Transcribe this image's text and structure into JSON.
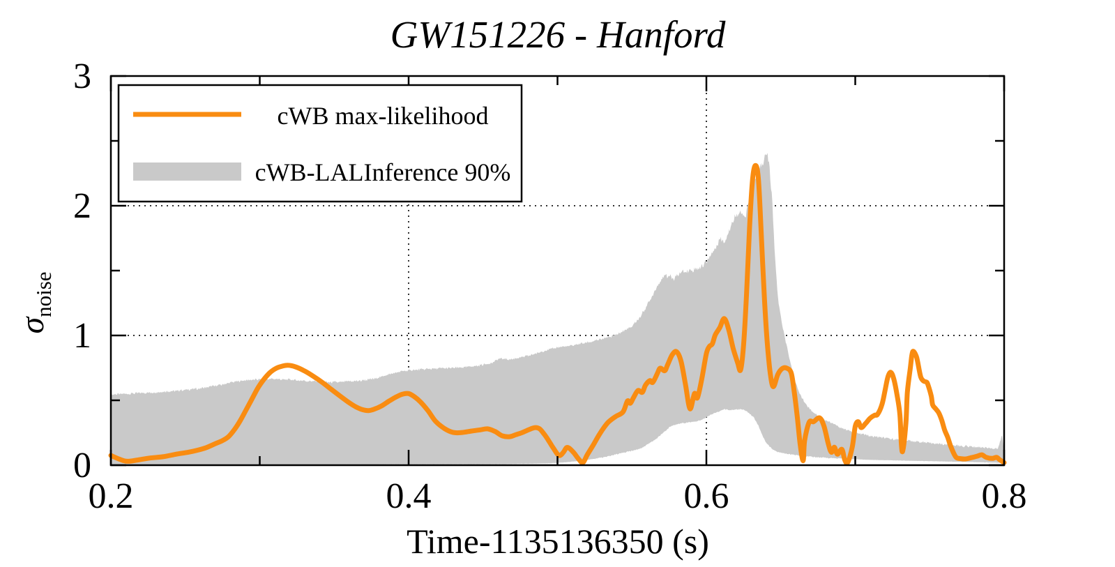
{
  "title": "GW151226 - Hanford",
  "axes": {
    "xlabel": "Time-1135136350 (s)",
    "ylabel_symbol": "σ",
    "ylabel_subscript": "noise",
    "x_tick_labels": [
      "0.2",
      "0.4",
      "0.6",
      "0.8"
    ],
    "y_tick_labels": [
      "0",
      "1",
      "2",
      "3"
    ]
  },
  "legend": {
    "entries": [
      {
        "label": "cWB max-likelihood",
        "swatch": "line"
      },
      {
        "label": "cWB-LALInference 90%",
        "swatch": "band"
      }
    ]
  },
  "colors": {
    "line": "#f98c11",
    "band": "#c9c9c9",
    "grid": "#1a1a1a",
    "axis": "#000000",
    "background": "#ffffff"
  },
  "chart_data": {
    "type": "line",
    "title": "GW151226 - Hanford",
    "xlabel": "Time-1135136350 (s)",
    "ylabel": "sigma_noise",
    "xlim": [
      0.2,
      0.8
    ],
    "ylim": [
      0,
      3
    ],
    "xticks": [
      0.2,
      0.4,
      0.6,
      0.8
    ],
    "xticks_minor": [
      0.3,
      0.5,
      0.7
    ],
    "yticks": [
      0,
      1,
      2,
      3
    ],
    "yticks_minor": [
      0.5,
      1.5,
      2.5
    ],
    "grid": {
      "x": [
        0.4,
        0.6
      ],
      "y": [
        1,
        2
      ],
      "style": "dotted"
    },
    "legend_position": "top-left",
    "series": [
      {
        "name": "cWB max-likelihood",
        "type": "line",
        "color": "#f98c11",
        "points": [
          [
            0.2,
            0.075
          ],
          [
            0.206,
            0.045
          ],
          [
            0.211,
            0.03
          ],
          [
            0.218,
            0.04
          ],
          [
            0.226,
            0.055
          ],
          [
            0.235,
            0.065
          ],
          [
            0.244,
            0.085
          ],
          [
            0.252,
            0.1
          ],
          [
            0.258,
            0.115
          ],
          [
            0.264,
            0.135
          ],
          [
            0.27,
            0.165
          ],
          [
            0.275,
            0.19
          ],
          [
            0.279,
            0.22
          ],
          [
            0.283,
            0.275
          ],
          [
            0.287,
            0.345
          ],
          [
            0.291,
            0.43
          ],
          [
            0.295,
            0.515
          ],
          [
            0.299,
            0.6
          ],
          [
            0.303,
            0.665
          ],
          [
            0.307,
            0.715
          ],
          [
            0.311,
            0.747
          ],
          [
            0.315,
            0.763
          ],
          [
            0.319,
            0.77
          ],
          [
            0.324,
            0.758
          ],
          [
            0.33,
            0.727
          ],
          [
            0.336,
            0.685
          ],
          [
            0.342,
            0.638
          ],
          [
            0.348,
            0.585
          ],
          [
            0.354,
            0.533
          ],
          [
            0.36,
            0.482
          ],
          [
            0.365,
            0.447
          ],
          [
            0.369,
            0.428
          ],
          [
            0.373,
            0.421
          ],
          [
            0.377,
            0.432
          ],
          [
            0.382,
            0.458
          ],
          [
            0.387,
            0.495
          ],
          [
            0.392,
            0.528
          ],
          [
            0.396,
            0.548
          ],
          [
            0.4,
            0.552
          ],
          [
            0.404,
            0.527
          ],
          [
            0.408,
            0.487
          ],
          [
            0.413,
            0.42
          ],
          [
            0.418,
            0.34
          ],
          [
            0.424,
            0.283
          ],
          [
            0.43,
            0.252
          ],
          [
            0.436,
            0.252
          ],
          [
            0.442,
            0.263
          ],
          [
            0.448,
            0.272
          ],
          [
            0.453,
            0.28
          ],
          [
            0.458,
            0.26
          ],
          [
            0.463,
            0.226
          ],
          [
            0.468,
            0.22
          ],
          [
            0.472,
            0.235
          ],
          [
            0.476,
            0.25
          ],
          [
            0.481,
            0.275
          ],
          [
            0.485,
            0.29
          ],
          [
            0.488,
            0.28
          ],
          [
            0.491,
            0.24
          ],
          [
            0.494,
            0.19
          ],
          [
            0.497,
            0.135
          ],
          [
            0.501,
            0.075
          ],
          [
            0.504,
            0.1
          ],
          [
            0.506,
            0.135
          ],
          [
            0.508,
            0.13
          ],
          [
            0.511,
            0.095
          ],
          [
            0.514,
            0.05
          ],
          [
            0.517,
            0.02
          ],
          [
            0.52,
            0.08
          ],
          [
            0.524,
            0.155
          ],
          [
            0.527,
            0.215
          ],
          [
            0.53,
            0.27
          ],
          [
            0.534,
            0.33
          ],
          [
            0.539,
            0.375
          ],
          [
            0.544,
            0.41
          ],
          [
            0.547,
            0.495
          ],
          [
            0.549,
            0.478
          ],
          [
            0.551,
            0.52
          ],
          [
            0.554,
            0.575
          ],
          [
            0.557,
            0.562
          ],
          [
            0.559,
            0.615
          ],
          [
            0.562,
            0.652
          ],
          [
            0.564,
            0.638
          ],
          [
            0.567,
            0.705
          ],
          [
            0.569,
            0.748
          ],
          [
            0.572,
            0.728
          ],
          [
            0.574,
            0.775
          ],
          [
            0.577,
            0.85
          ],
          [
            0.58,
            0.875
          ],
          [
            0.583,
            0.8
          ],
          [
            0.586,
            0.62
          ],
          [
            0.589,
            0.435
          ],
          [
            0.592,
            0.552
          ],
          [
            0.594,
            0.52
          ],
          [
            0.597,
            0.67
          ],
          [
            0.6,
            0.86
          ],
          [
            0.602,
            0.915
          ],
          [
            0.604,
            0.935
          ],
          [
            0.606,
            1.005
          ],
          [
            0.609,
            1.06
          ],
          [
            0.612,
            1.13
          ],
          [
            0.615,
            1.045
          ],
          [
            0.618,
            0.9
          ],
          [
            0.621,
            0.79
          ],
          [
            0.623,
            0.735
          ],
          [
            0.625,
            0.93
          ],
          [
            0.627,
            1.32
          ],
          [
            0.629,
            1.83
          ],
          [
            0.631,
            2.2
          ],
          [
            0.633,
            2.31
          ],
          [
            0.635,
            2.2
          ],
          [
            0.637,
            1.75
          ],
          [
            0.639,
            1.28
          ],
          [
            0.641,
            0.93
          ],
          [
            0.643,
            0.7
          ],
          [
            0.645,
            0.605
          ],
          [
            0.648,
            0.7
          ],
          [
            0.651,
            0.745
          ],
          [
            0.654,
            0.748
          ],
          [
            0.657,
            0.71
          ],
          [
            0.659,
            0.565
          ],
          [
            0.661,
            0.38
          ],
          [
            0.663,
            0.16
          ],
          [
            0.665,
            0.035
          ],
          [
            0.666,
            0.19
          ],
          [
            0.669,
            0.33
          ],
          [
            0.672,
            0.335
          ],
          [
            0.676,
            0.365
          ],
          [
            0.679,
            0.3
          ],
          [
            0.682,
            0.16
          ],
          [
            0.684,
            0.1
          ],
          [
            0.686,
            0.138
          ],
          [
            0.688,
            0.085
          ],
          [
            0.691,
            0.122
          ],
          [
            0.693,
            0.038
          ],
          [
            0.695,
            0.022
          ],
          [
            0.698,
            0.14
          ],
          [
            0.7,
            0.3
          ],
          [
            0.702,
            0.335
          ],
          [
            0.704,
            0.29
          ],
          [
            0.707,
            0.322
          ],
          [
            0.71,
            0.362
          ],
          [
            0.713,
            0.385
          ],
          [
            0.715,
            0.392
          ],
          [
            0.718,
            0.47
          ],
          [
            0.72,
            0.575
          ],
          [
            0.722,
            0.683
          ],
          [
            0.724,
            0.715
          ],
          [
            0.726,
            0.66
          ],
          [
            0.728,
            0.545
          ],
          [
            0.73,
            0.39
          ],
          [
            0.731,
            0.155
          ],
          [
            0.732,
            0.115
          ],
          [
            0.734,
            0.32
          ],
          [
            0.735,
            0.56
          ],
          [
            0.737,
            0.75
          ],
          [
            0.738,
            0.845
          ],
          [
            0.739,
            0.878
          ],
          [
            0.741,
            0.84
          ],
          [
            0.742,
            0.792
          ],
          [
            0.744,
            0.68
          ],
          [
            0.746,
            0.648
          ],
          [
            0.748,
            0.64
          ],
          [
            0.749,
            0.615
          ],
          [
            0.751,
            0.535
          ],
          [
            0.752,
            0.465
          ],
          [
            0.754,
            0.435
          ],
          [
            0.756,
            0.405
          ],
          [
            0.758,
            0.35
          ],
          [
            0.76,
            0.272
          ],
          [
            0.762,
            0.218
          ],
          [
            0.764,
            0.15
          ],
          [
            0.766,
            0.095
          ],
          [
            0.768,
            0.058
          ],
          [
            0.771,
            0.05
          ],
          [
            0.774,
            0.048
          ],
          [
            0.778,
            0.058
          ],
          [
            0.782,
            0.07
          ],
          [
            0.785,
            0.08
          ],
          [
            0.788,
            0.06
          ],
          [
            0.792,
            0.052
          ],
          [
            0.795,
            0.06
          ],
          [
            0.797,
            0.042
          ],
          [
            0.8,
            0.02
          ]
        ]
      },
      {
        "name": "cWB-LALInference 90%",
        "type": "band",
        "color": "#c9c9c9",
        "points_format": "[t, lower, upper]",
        "points": [
          [
            0.2,
            0.003,
            0.545
          ],
          [
            0.212,
            0.003,
            0.552
          ],
          [
            0.224,
            0.003,
            0.558
          ],
          [
            0.236,
            0.003,
            0.566
          ],
          [
            0.248,
            0.003,
            0.578
          ],
          [
            0.26,
            0.003,
            0.592
          ],
          [
            0.272,
            0.003,
            0.615
          ],
          [
            0.284,
            0.004,
            0.645
          ],
          [
            0.296,
            0.004,
            0.66
          ],
          [
            0.308,
            0.004,
            0.665
          ],
          [
            0.32,
            0.004,
            0.66
          ],
          [
            0.332,
            0.004,
            0.648
          ],
          [
            0.344,
            0.004,
            0.64
          ],
          [
            0.356,
            0.005,
            0.642
          ],
          [
            0.368,
            0.005,
            0.652
          ],
          [
            0.378,
            0.005,
            0.668
          ],
          [
            0.388,
            0.006,
            0.705
          ],
          [
            0.398,
            0.006,
            0.728
          ],
          [
            0.41,
            0.007,
            0.74
          ],
          [
            0.422,
            0.007,
            0.746
          ],
          [
            0.434,
            0.008,
            0.752
          ],
          [
            0.446,
            0.008,
            0.765
          ],
          [
            0.456,
            0.009,
            0.79
          ],
          [
            0.461,
            0.009,
            0.822
          ],
          [
            0.468,
            0.01,
            0.815
          ],
          [
            0.476,
            0.011,
            0.83
          ],
          [
            0.484,
            0.012,
            0.855
          ],
          [
            0.492,
            0.014,
            0.885
          ],
          [
            0.5,
            0.018,
            0.908
          ],
          [
            0.508,
            0.025,
            0.92
          ],
          [
            0.516,
            0.035,
            0.938
          ],
          [
            0.524,
            0.048,
            0.955
          ],
          [
            0.532,
            0.062,
            0.98
          ],
          [
            0.538,
            0.08,
            1.0
          ],
          [
            0.544,
            0.095,
            1.03
          ],
          [
            0.55,
            0.11,
            1.07
          ],
          [
            0.556,
            0.13,
            1.15
          ],
          [
            0.562,
            0.17,
            1.27
          ],
          [
            0.567,
            0.21,
            1.38
          ],
          [
            0.571,
            0.25,
            1.45
          ],
          [
            0.575,
            0.29,
            1.468
          ],
          [
            0.578,
            0.31,
            1.43
          ],
          [
            0.582,
            0.32,
            1.48
          ],
          [
            0.587,
            0.328,
            1.5
          ],
          [
            0.592,
            0.335,
            1.51
          ],
          [
            0.597,
            0.35,
            1.53
          ],
          [
            0.602,
            0.385,
            1.6
          ],
          [
            0.606,
            0.405,
            1.67
          ],
          [
            0.609,
            0.415,
            1.75
          ],
          [
            0.612,
            0.43,
            1.72
          ],
          [
            0.616,
            0.425,
            1.83
          ],
          [
            0.62,
            0.43,
            1.93
          ],
          [
            0.623,
            0.43,
            1.96
          ],
          [
            0.626,
            0.425,
            1.9
          ],
          [
            0.629,
            0.4,
            2.07
          ],
          [
            0.632,
            0.365,
            2.17
          ],
          [
            0.635,
            0.305,
            2.26
          ],
          [
            0.638,
            0.22,
            2.33
          ],
          [
            0.64,
            0.175,
            2.39
          ],
          [
            0.642,
            0.15,
            2.34
          ],
          [
            0.644,
            0.125,
            2.08
          ],
          [
            0.646,
            0.112,
            1.62
          ],
          [
            0.648,
            0.103,
            1.3
          ],
          [
            0.651,
            0.093,
            1.07
          ],
          [
            0.654,
            0.087,
            0.92
          ],
          [
            0.657,
            0.082,
            0.76
          ],
          [
            0.66,
            0.079,
            0.63
          ],
          [
            0.664,
            0.073,
            0.52
          ],
          [
            0.668,
            0.068,
            0.452
          ],
          [
            0.672,
            0.063,
            0.405
          ],
          [
            0.677,
            0.059,
            0.37
          ],
          [
            0.682,
            0.056,
            0.335
          ],
          [
            0.688,
            0.053,
            0.302
          ],
          [
            0.694,
            0.049,
            0.272
          ],
          [
            0.702,
            0.045,
            0.246
          ],
          [
            0.71,
            0.041,
            0.226
          ],
          [
            0.718,
            0.039,
            0.212
          ],
          [
            0.726,
            0.037,
            0.2
          ],
          [
            0.734,
            0.035,
            0.19
          ],
          [
            0.742,
            0.033,
            0.181
          ],
          [
            0.75,
            0.031,
            0.171
          ],
          [
            0.758,
            0.029,
            0.162
          ],
          [
            0.766,
            0.027,
            0.153
          ],
          [
            0.774,
            0.025,
            0.146
          ],
          [
            0.782,
            0.023,
            0.14
          ],
          [
            0.79,
            0.021,
            0.133
          ],
          [
            0.796,
            0.019,
            0.127
          ],
          [
            0.7985,
            0.018,
            0.235
          ],
          [
            0.8,
            0.018,
            0.105
          ]
        ]
      }
    ]
  }
}
